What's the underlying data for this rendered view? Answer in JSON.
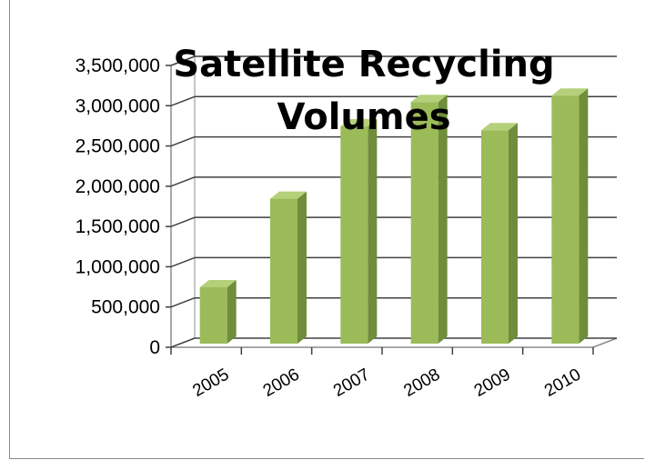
{
  "chart_data": {
    "type": "bar",
    "title_lines": [
      "Satellite Recycling",
      "Volumes"
    ],
    "categories": [
      "2005",
      "2006",
      "2007",
      "2008",
      "2009",
      "2010"
    ],
    "values": [
      700000,
      1800000,
      2700000,
      3000000,
      2650000,
      3080000
    ],
    "ylim": [
      0,
      3500000
    ],
    "yticks": [
      0,
      500000,
      1000000,
      1500000,
      2000000,
      2500000,
      3000000,
      3500000
    ],
    "ytick_labels": [
      "0",
      "500,000",
      "1,000,000",
      "1,500,000",
      "2,000,000",
      "2,500,000",
      "3,000,000",
      "3,500,000"
    ],
    "grid": true,
    "legend": "none",
    "bar_color": "#9bbb59",
    "bar_side_color": "#6f8d3a",
    "bar_top_color": "#b5d07a"
  }
}
